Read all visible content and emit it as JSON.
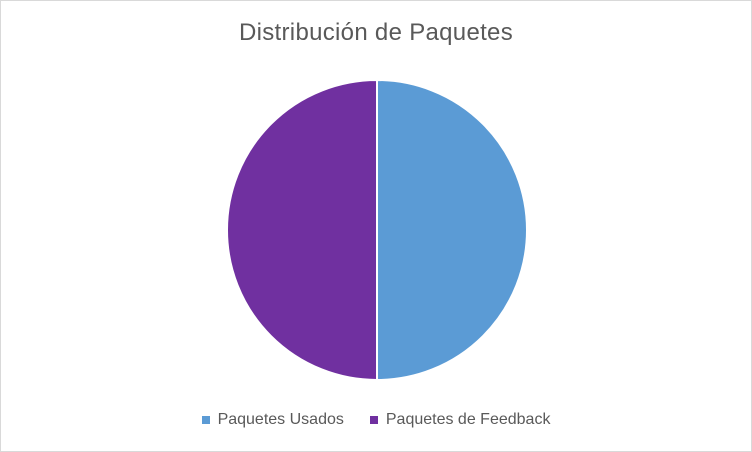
{
  "chart_data": {
    "type": "pie",
    "title": "Distribución de Paquetes",
    "categories": [
      "Paquetes Usados",
      "Paquetes de Feedback"
    ],
    "values": [
      50,
      50
    ],
    "colors": [
      "#5b9bd5",
      "#7030a0"
    ],
    "legend_position": "bottom"
  }
}
